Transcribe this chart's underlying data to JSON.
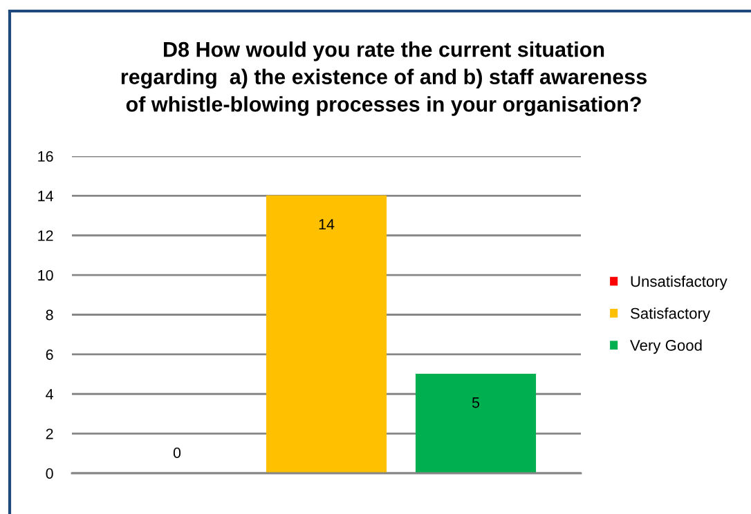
{
  "chart_data": {
    "type": "bar",
    "title": "D8 How would you rate the current situation\nregarding  a) the existence of and b) staff awareness\nof whistle-blowing processes in your organisation?",
    "categories": [
      null
    ],
    "series": [
      {
        "name": "Unsatisfactory",
        "color": "#ff0000",
        "values": [
          0
        ]
      },
      {
        "name": "Satisfactory",
        "color": "#ffc000",
        "values": [
          14
        ]
      },
      {
        "name": "Very Good",
        "color": "#00b050",
        "values": [
          5
        ]
      }
    ],
    "ylim": [
      0,
      16
    ],
    "yticks": [
      0,
      2,
      4,
      6,
      8,
      10,
      12,
      14,
      16
    ],
    "grid": "y",
    "legend": "right",
    "data_labels": true
  }
}
